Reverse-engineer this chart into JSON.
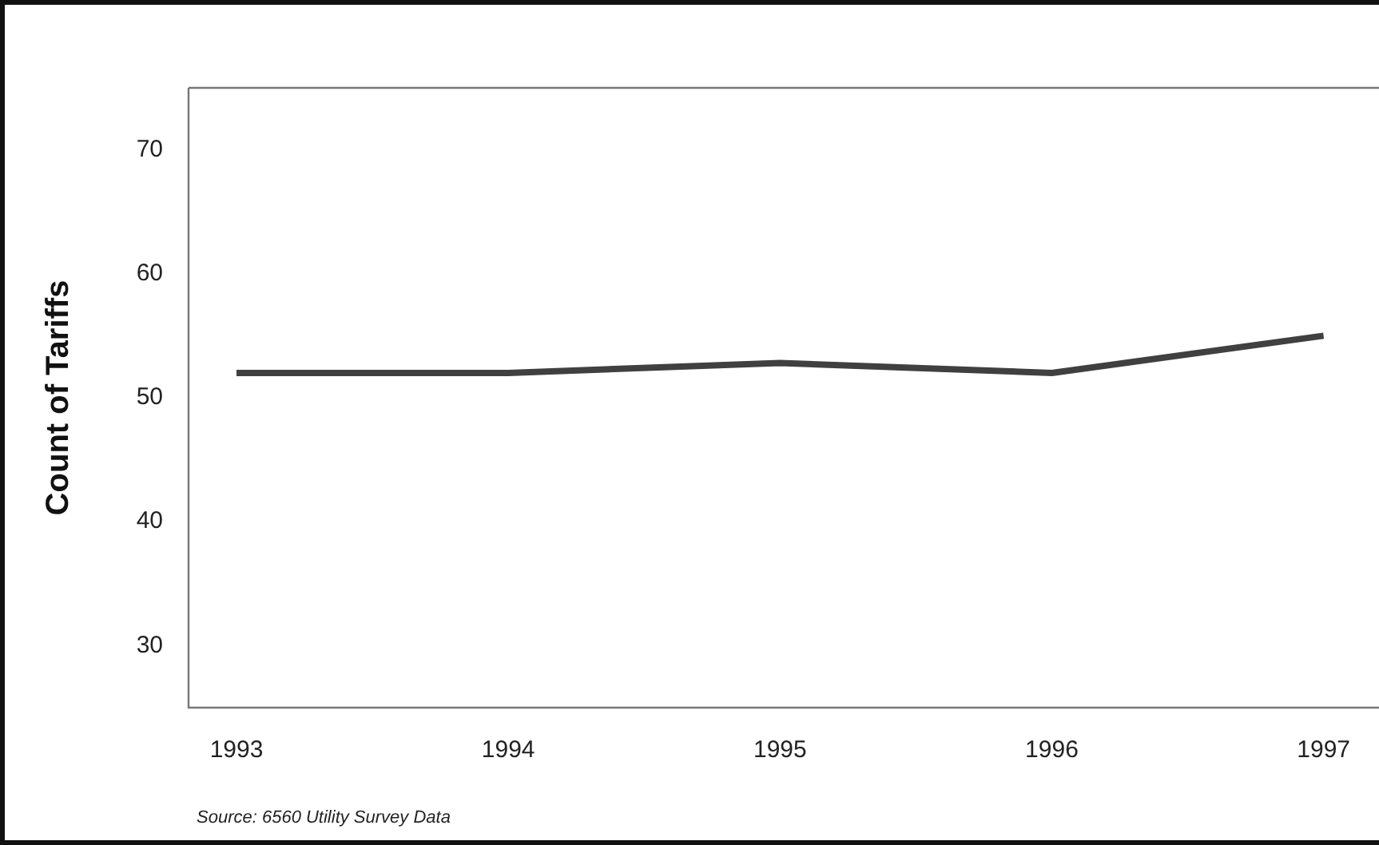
{
  "chart_data": {
    "type": "line",
    "ylabel": "Count of Tariffs",
    "categories": [
      "1993",
      "1994",
      "1995",
      "1996",
      "1997"
    ],
    "series": [
      {
        "color": "#404040",
        "values": [
          52,
          52,
          52.8,
          52,
          55
        ]
      }
    ],
    "ylim": [
      25,
      75
    ],
    "yticks": [
      30,
      40,
      50,
      60,
      70
    ],
    "grid": false,
    "legend": false,
    "marker": "none",
    "line_style": "solid",
    "annotations": [
      "Source: 6560 Utility Survey Data"
    ]
  }
}
